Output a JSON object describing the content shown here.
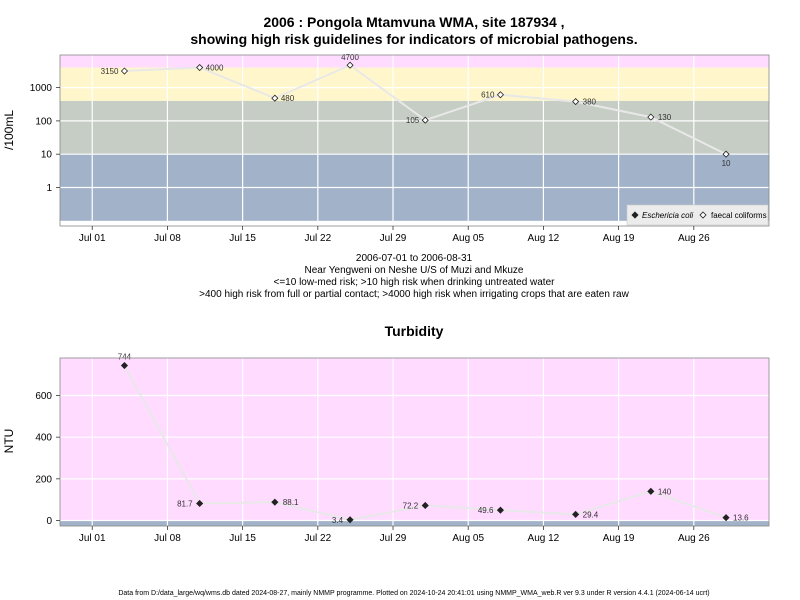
{
  "chart_data": [
    {
      "type": "line",
      "title": "2006 : Pongola Mtamvuna WMA, site 187934 ,",
      "title_line2": "showing high risk guidelines for indicators of microbial pathogens.",
      "ylabel": "/100mL",
      "scale": "log",
      "yticks": [
        "1",
        "10",
        "100",
        "1000"
      ],
      "xticks": [
        "Jul 01",
        "Jul 08",
        "Jul 15",
        "Jul 22",
        "Jul 29",
        "Aug 05",
        "Aug 12",
        "Aug 19",
        "Aug 26"
      ],
      "subtitle_lines": [
        "2006-07-01 to 2006-08-31",
        "Near Yengweni on Neshe U/S of Muzi and Mkuze",
        "<=10 low-med risk; >10 high risk when drinking untreated water",
        ">400 high risk from full or partial contact; >4000 high risk when irrigating crops that are eaten raw"
      ],
      "bands": [
        {
          "from": 0.1,
          "to": 10,
          "color": "#a1b2c9"
        },
        {
          "from": 10,
          "to": 400,
          "color": "#c5cdc4"
        },
        {
          "from": 400,
          "to": 4000,
          "color": "#fff7cb"
        },
        {
          "from": 4000,
          "to": 10000,
          "color": "#ffdbff"
        }
      ],
      "series": [
        {
          "name": "Eschericia coli",
          "marker": "filled-diamond",
          "points": []
        },
        {
          "name": "faecal coliforms",
          "marker": "open-diamond",
          "line_color": "#e8e8e8",
          "points": [
            {
              "date": "2006-07-04",
              "value": 3150,
              "label": "3150"
            },
            {
              "date": "2006-07-11",
              "value": 4000,
              "label": "4000"
            },
            {
              "date": "2006-07-18",
              "value": 480,
              "label": "480"
            },
            {
              "date": "2006-07-25",
              "value": 4700,
              "label": "4700"
            },
            {
              "date": "2006-08-01",
              "value": 105,
              "label": "105"
            },
            {
              "date": "2006-08-08",
              "value": 610,
              "label": "610"
            },
            {
              "date": "2006-08-15",
              "value": 380,
              "label": "380"
            },
            {
              "date": "2006-08-22",
              "value": 130,
              "label": "130"
            },
            {
              "date": "2006-08-29",
              "value": 10,
              "label": "10"
            }
          ]
        }
      ],
      "legend": {
        "position": "bottom-right",
        "items": [
          "Eschericia coli",
          "faecal coliforms"
        ]
      }
    },
    {
      "type": "line",
      "title": "Turbidity",
      "ylabel": "NTU",
      "ylim": [
        -30,
        780
      ],
      "yticks": [
        "0",
        "200",
        "400",
        "600"
      ],
      "xticks": [
        "Jul 01",
        "Jul 08",
        "Jul 15",
        "Jul 22",
        "Jul 29",
        "Aug 05",
        "Aug 12",
        "Aug 19",
        "Aug 26"
      ],
      "background_color": "#ffdbff",
      "bottom_band_color": "#a1b2c9",
      "series": [
        {
          "marker": "filled-diamond",
          "line_color": "#e8e8e8",
          "points": [
            {
              "date": "2006-07-04",
              "value": 744,
              "label": "744"
            },
            {
              "date": "2006-07-11",
              "value": 81.7,
              "label": "81.7"
            },
            {
              "date": "2006-07-18",
              "value": 88.1,
              "label": "88.1"
            },
            {
              "date": "2006-07-25",
              "value": 3.4,
              "label": "3.4"
            },
            {
              "date": "2006-08-01",
              "value": 72.2,
              "label": "72.2"
            },
            {
              "date": "2006-08-08",
              "value": 49.6,
              "label": "49.6"
            },
            {
              "date": "2006-08-15",
              "value": 29.4,
              "label": "29.4"
            },
            {
              "date": "2006-08-22",
              "value": 140,
              "label": "140"
            },
            {
              "date": "2006-08-29",
              "value": 13.6,
              "label": "13.6"
            }
          ]
        }
      ]
    }
  ],
  "footer": "Data from D:/data_large/wq/wms.db dated 2024-08-27, mainly NMMP programme. Plotted on 2024-10-24 20:41:01 using NMMP_WMA_web.R ver 9.3 under R version 4.4.1 (2024-06-14 ucrt)"
}
